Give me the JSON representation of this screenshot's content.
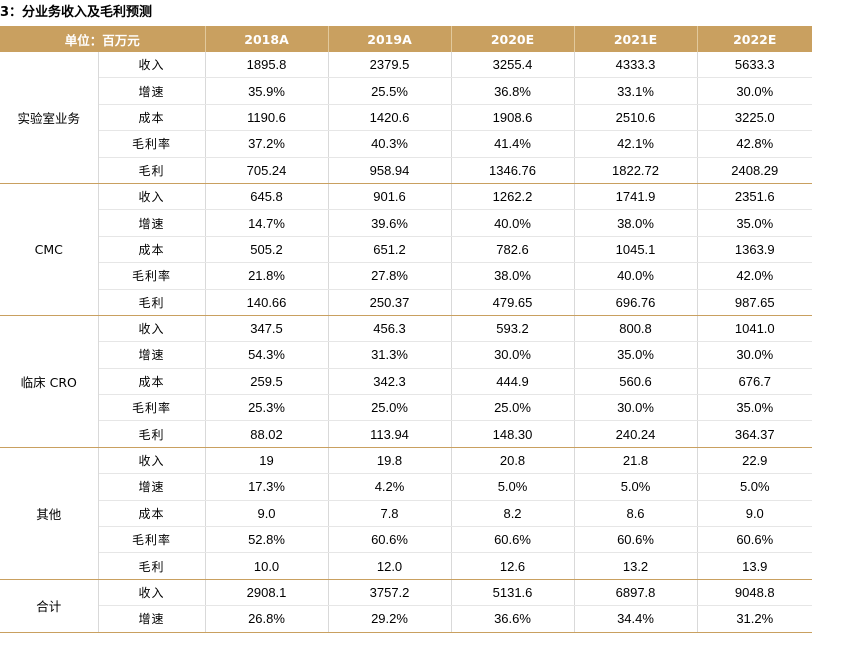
{
  "title": "3：分业务收入及毛利预测",
  "header": {
    "unit": "单位：百万元",
    "years": [
      "2018A",
      "2019A",
      "2020E",
      "2021E",
      "2022E"
    ]
  },
  "segments": [
    {
      "name": "实验室业务",
      "rows": [
        {
          "metric": "收入",
          "values": [
            "1895.8",
            "2379.5",
            "3255.4",
            "4333.3",
            "5633.3"
          ]
        },
        {
          "metric": "增速",
          "values": [
            "35.9%",
            "25.5%",
            "36.8%",
            "33.1%",
            "30.0%"
          ]
        },
        {
          "metric": "成本",
          "values": [
            "1190.6",
            "1420.6",
            "1908.6",
            "2510.6",
            "3225.0"
          ]
        },
        {
          "metric": "毛利率",
          "values": [
            "37.2%",
            "40.3%",
            "41.4%",
            "42.1%",
            "42.8%"
          ]
        },
        {
          "metric": "毛利",
          "values": [
            "705.24",
            "958.94",
            "1346.76",
            "1822.72",
            "2408.29"
          ]
        }
      ]
    },
    {
      "name": "CMC",
      "rows": [
        {
          "metric": "收入",
          "values": [
            "645.8",
            "901.6",
            "1262.2",
            "1741.9",
            "2351.6"
          ]
        },
        {
          "metric": "增速",
          "values": [
            "14.7%",
            "39.6%",
            "40.0%",
            "38.0%",
            "35.0%"
          ]
        },
        {
          "metric": "成本",
          "values": [
            "505.2",
            "651.2",
            "782.6",
            "1045.1",
            "1363.9"
          ]
        },
        {
          "metric": "毛利率",
          "values": [
            "21.8%",
            "27.8%",
            "38.0%",
            "40.0%",
            "42.0%"
          ]
        },
        {
          "metric": "毛利",
          "values": [
            "140.66",
            "250.37",
            "479.65",
            "696.76",
            "987.65"
          ]
        }
      ]
    },
    {
      "name": "临床 CRO",
      "rows": [
        {
          "metric": "收入",
          "values": [
            "347.5",
            "456.3",
            "593.2",
            "800.8",
            "1041.0"
          ]
        },
        {
          "metric": "增速",
          "values": [
            "54.3%",
            "31.3%",
            "30.0%",
            "35.0%",
            "30.0%"
          ]
        },
        {
          "metric": "成本",
          "values": [
            "259.5",
            "342.3",
            "444.9",
            "560.6",
            "676.7"
          ]
        },
        {
          "metric": "毛利率",
          "values": [
            "25.3%",
            "25.0%",
            "25.0%",
            "30.0%",
            "35.0%"
          ]
        },
        {
          "metric": "毛利",
          "values": [
            "88.02",
            "113.94",
            "148.30",
            "240.24",
            "364.37"
          ]
        }
      ]
    },
    {
      "name": "其他",
      "rows": [
        {
          "metric": "收入",
          "values": [
            "19",
            "19.8",
            "20.8",
            "21.8",
            "22.9"
          ]
        },
        {
          "metric": "增速",
          "values": [
            "17.3%",
            "4.2%",
            "5.0%",
            "5.0%",
            "5.0%"
          ]
        },
        {
          "metric": "成本",
          "values": [
            "9.0",
            "7.8",
            "8.2",
            "8.6",
            "9.0"
          ]
        },
        {
          "metric": "毛利率",
          "values": [
            "52.8%",
            "60.6%",
            "60.6%",
            "60.6%",
            "60.6%"
          ]
        },
        {
          "metric": "毛利",
          "values": [
            "10.0",
            "12.0",
            "12.6",
            "13.2",
            "13.9"
          ]
        }
      ]
    },
    {
      "name": "合计",
      "rows": [
        {
          "metric": "收入",
          "values": [
            "2908.1",
            "3757.2",
            "5131.6",
            "6897.8",
            "9048.8"
          ]
        },
        {
          "metric": "增速",
          "values": [
            "26.8%",
            "29.2%",
            "36.6%",
            "34.4%",
            "31.2%"
          ]
        }
      ]
    }
  ]
}
